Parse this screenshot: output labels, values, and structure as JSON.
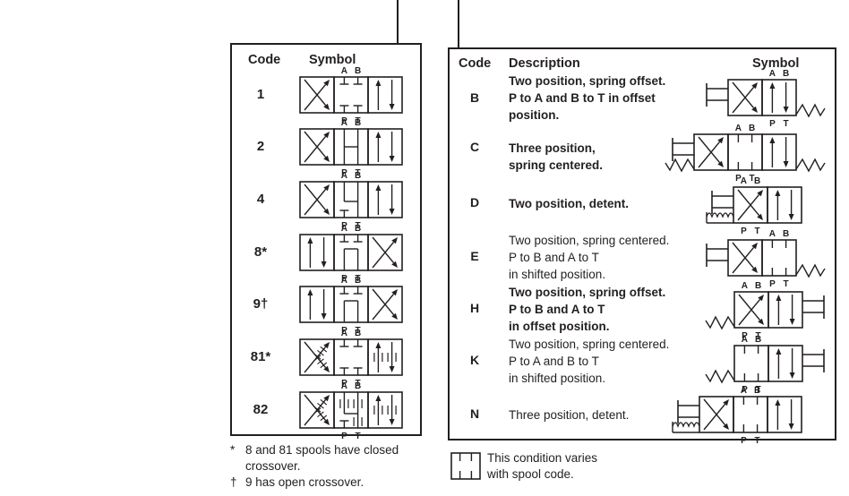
{
  "page": {
    "line_color": "#231f20"
  },
  "ports": {
    "top": [
      "A",
      "B"
    ],
    "bottom": [
      "P",
      "T"
    ]
  },
  "spool_table": {
    "headers": {
      "code": "Code",
      "symbol": "Symbol"
    },
    "rows": [
      {
        "code": "1",
        "symbol": {
          "boxes": [
            "cross",
            "blocked",
            "arrows"
          ],
          "label_box": 1,
          "left": [],
          "right": []
        }
      },
      {
        "code": "2",
        "symbol": {
          "boxes": [
            "cross",
            "open",
            "arrows"
          ],
          "label_box": 1,
          "left": [],
          "right": []
        }
      },
      {
        "code": "4",
        "symbol": {
          "boxes": [
            "cross",
            "abt",
            "arrows"
          ],
          "label_box": 1,
          "left": [],
          "right": []
        }
      },
      {
        "code": "8*",
        "symbol": {
          "boxes": [
            "arrows",
            "ptu",
            "cross"
          ],
          "label_box": 1,
          "left": [],
          "right": []
        }
      },
      {
        "code": "9†",
        "symbol": {
          "boxes": [
            "arrows",
            "ptu",
            "cross"
          ],
          "label_box": 1,
          "left": [],
          "right": []
        }
      },
      {
        "code": "81*",
        "symbol": {
          "boxes": [
            "cross_rest",
            "blocked",
            "arrows_rest"
          ],
          "label_box": 1,
          "left": [],
          "right": []
        }
      },
      {
        "code": "82",
        "symbol": {
          "boxes": [
            "cross_rest",
            "c82",
            "arrows_rest"
          ],
          "label_box": 1,
          "left": [],
          "right": []
        }
      }
    ],
    "footnotes": [
      {
        "marker": "*",
        "text": "8 and 81 spools have closed crossover."
      },
      {
        "marker": "†",
        "text": "9 has open crossover."
      }
    ]
  },
  "actuator_table": {
    "headers": {
      "code": "Code",
      "description": "Description",
      "symbol": "Symbol"
    },
    "rows": [
      {
        "code": "B",
        "bold": true,
        "desc_lines": [
          "Two position, spring offset.",
          "P to A and B to T in offset",
          "position."
        ],
        "symbol": {
          "boxes": [
            "cross",
            "arrows"
          ],
          "label_box": 1,
          "left": [
            "actuator"
          ],
          "right": [
            "spring"
          ]
        }
      },
      {
        "code": "C",
        "bold": true,
        "desc_lines": [
          "Three position,",
          "spring centered."
        ],
        "symbol": {
          "boxes": [
            "cross",
            "varies",
            "arrows"
          ],
          "label_box": 1,
          "left": [
            "actuator",
            "spring"
          ],
          "right": [
            "spring"
          ]
        }
      },
      {
        "code": "D",
        "bold": true,
        "desc_lines": [
          "Two position, detent."
        ],
        "symbol": {
          "boxes": [
            "cross",
            "arrows"
          ],
          "label_box": 0,
          "left": [
            "actuator",
            "detent"
          ],
          "right": []
        }
      },
      {
        "code": "E",
        "bold": false,
        "desc_lines": [
          "Two position, spring centered.",
          "P to B and A to T",
          "in shifted position."
        ],
        "symbol": {
          "boxes": [
            "cross",
            "varies"
          ],
          "label_box": 1,
          "left": [
            "actuator"
          ],
          "right": [
            "spring"
          ]
        }
      },
      {
        "code": "H",
        "bold": true,
        "desc_lines": [
          "Two position, spring offset.",
          "P to B and A to T",
          "in offset position."
        ],
        "symbol": {
          "boxes": [
            "cross",
            "arrows"
          ],
          "label_box": 0,
          "left": [
            "spring"
          ],
          "right": [
            "actuator"
          ]
        }
      },
      {
        "code": "K",
        "bold": false,
        "desc_lines": [
          "Two position, spring centered.",
          "P to A and B to T",
          "in shifted position."
        ],
        "symbol": {
          "boxes": [
            "varies",
            "arrows"
          ],
          "label_box": 0,
          "left": [
            "spring"
          ],
          "right": [
            "actuator"
          ]
        }
      },
      {
        "code": "N",
        "bold": false,
        "desc_lines": [
          "Three position, detent."
        ],
        "symbol": {
          "boxes": [
            "cross",
            "varies",
            "arrows"
          ],
          "label_box": 1,
          "left": [
            "actuator",
            "detent"
          ],
          "right": []
        }
      }
    ]
  },
  "legend": {
    "icon": "varies-box-icon",
    "lines": [
      "This condition varies",
      "with spool code."
    ]
  }
}
